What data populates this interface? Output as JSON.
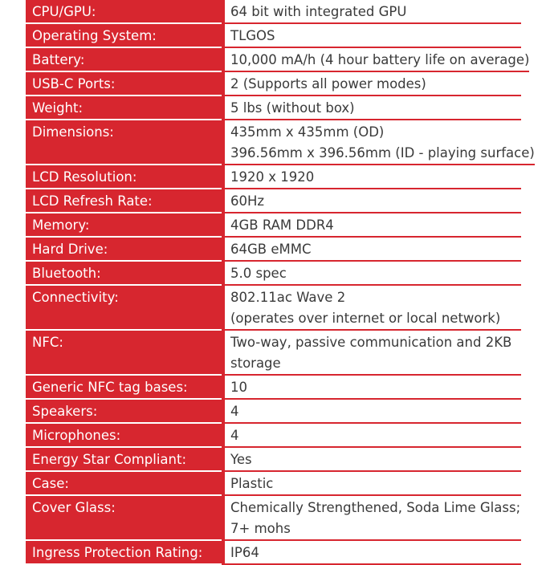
{
  "specs": [
    {
      "label": "CPU/GPU:",
      "value": [
        "64 bit with integrated GPU"
      ]
    },
    {
      "label": "Operating System:",
      "value": [
        "TLGOS"
      ]
    },
    {
      "label": "Battery:",
      "value": [
        "10,000 mA/h (4 hour battery life on average)"
      ]
    },
    {
      "label": "USB-C Ports:",
      "value": [
        "2 (Supports all power modes)"
      ]
    },
    {
      "label": "Weight:",
      "value": [
        "5 lbs (without box)"
      ]
    },
    {
      "label": "Dimensions:",
      "value": [
        "435mm x 435mm (OD)",
        "396.56mm x 396.56mm (ID - playing surface)"
      ]
    },
    {
      "label": "LCD Resolution:",
      "value": [
        "1920 x 1920"
      ]
    },
    {
      "label": "LCD Refresh Rate:",
      "value": [
        "60Hz"
      ]
    },
    {
      "label": "Memory:",
      "value": [
        "4GB RAM DDR4"
      ]
    },
    {
      "label": "Hard Drive:",
      "value": [
        "64GB eMMC"
      ]
    },
    {
      "label": "Bluetooth:",
      "value": [
        "5.0 spec"
      ]
    },
    {
      "label": "Connectivity:",
      "value": [
        "802.11ac Wave 2",
        "(operates over internet or local network)"
      ]
    },
    {
      "label": "NFC:",
      "value": [
        "Two-way, passive communication and 2KB",
        "storage"
      ]
    },
    {
      "label": "Generic NFC tag bases:",
      "value": [
        "10"
      ]
    },
    {
      "label": "Speakers:",
      "value": [
        "4"
      ]
    },
    {
      "label": "Microphones:",
      "value": [
        "4"
      ]
    },
    {
      "label": "Energy Star Compliant:",
      "value": [
        "Yes"
      ]
    },
    {
      "label": "Case:",
      "value": [
        "Plastic"
      ]
    },
    {
      "label": "Cover Glass:",
      "value": [
        "Chemically Strengthened, Soda Lime Glass;",
        "7+ mohs"
      ]
    },
    {
      "label": "Ingress Protection Rating:",
      "value": [
        "IP64"
      ]
    }
  ],
  "colors": {
    "accent": "#d7262f",
    "text": "#3a3a3a",
    "label_text": "#ffffff"
  }
}
